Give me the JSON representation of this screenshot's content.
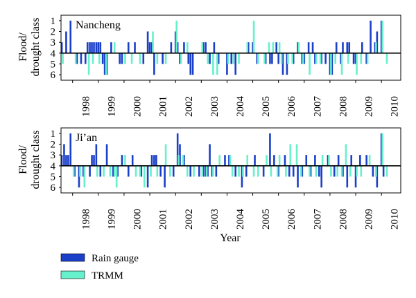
{
  "colors": {
    "rain_gauge": "#1a3fc9",
    "trmm": "#66f0cc",
    "axis": "#000000",
    "background": "#ffffff"
  },
  "chart_data": [
    {
      "type": "bar",
      "panel_label": "Nancheng",
      "ylabel_line1": "Flood/",
      "ylabel_line2": "drought class",
      "yticks": [
        "1",
        "2",
        "3",
        "4",
        "5",
        "6"
      ],
      "baseline": 4,
      "ylim": [
        0.5,
        6.5
      ],
      "xlim": [
        1997.55,
        2010.75
      ],
      "xticks": [
        "1998",
        "1999",
        "2000",
        "2001",
        "2002",
        "2003",
        "2004",
        "2005",
        "2006",
        "2007",
        "2008",
        "2009",
        "2010"
      ],
      "grid": false,
      "series": [
        {
          "name": "Rain gauge",
          "x": [
            1997.58,
            1997.75,
            1997.92,
            1998.17,
            1998.33,
            1998.5,
            1998.58,
            1998.67,
            1998.75,
            1998.83,
            1998.92,
            1999.0,
            1999.08,
            1999.17,
            1999.25,
            1999.33,
            1999.5,
            1999.83,
            1999.92,
            2000.17,
            2000.42,
            2000.75,
            2000.92,
            2001.0,
            2001.08,
            2001.17,
            2001.5,
            2001.83,
            2002.0,
            2002.08,
            2002.17,
            2002.33,
            2002.5,
            2002.58,
            2002.67,
            2003.08,
            2003.17,
            2003.33,
            2003.5,
            2003.67,
            2004.0,
            2004.17,
            2004.33,
            2004.83,
            2005.0,
            2005.17,
            2005.5,
            2005.67,
            2005.75,
            2005.92,
            2006.0,
            2006.17,
            2006.33,
            2006.58,
            2006.75,
            2006.92,
            2007.0,
            2007.17,
            2007.33,
            2007.42,
            2007.67,
            2007.83,
            2008.0,
            2008.08,
            2008.25,
            2008.42,
            2008.5,
            2008.67,
            2008.75,
            2008.92,
            2009.0,
            2009.25,
            2009.42,
            2009.58,
            2009.75,
            2009.83,
            2010.0
          ],
          "values": [
            3,
            2,
            1,
            5,
            5,
            5,
            3,
            3,
            3,
            3,
            3,
            3,
            3,
            5,
            6,
            6,
            3,
            5,
            5,
            3,
            3,
            5,
            2,
            3,
            3,
            6,
            5,
            3,
            2,
            3,
            5,
            3,
            5,
            6,
            6,
            3,
            3,
            5,
            3,
            5,
            6,
            5,
            6,
            3,
            3,
            5,
            5,
            5,
            5,
            3,
            5,
            6,
            6,
            5,
            3,
            5,
            5,
            3,
            3,
            5,
            5,
            5,
            6,
            6,
            3,
            5,
            3,
            3,
            3,
            5,
            5,
            3,
            5,
            1,
            3,
            2,
            1
          ]
        },
        {
          "name": "TRMM",
          "x": [
            1997.62,
            1998.12,
            1998.63,
            1998.79,
            1999.04,
            1999.3,
            1999.63,
            2000.04,
            2000.3,
            2000.62,
            2001.12,
            2001.29,
            2001.62,
            2002.04,
            2002.21,
            2002.46,
            2003.04,
            2003.25,
            2003.46,
            2003.62,
            2004.04,
            2004.25,
            2004.46,
            2004.79,
            2005.04,
            2005.21,
            2005.46,
            2005.63,
            2005.79,
            2006.04,
            2006.12,
            2006.37,
            2006.54,
            2006.79,
            2006.96,
            2007.21,
            2007.46,
            2007.63,
            2008.04,
            2008.21,
            2008.46,
            2008.71,
            2009.04,
            2009.21,
            2009.46,
            2009.79,
            2010.04,
            2010.21
          ],
          "values": [
            5,
            5,
            6,
            5,
            5,
            6,
            3,
            5,
            5,
            5,
            2,
            5,
            5,
            1,
            5,
            3,
            3,
            5,
            6,
            6,
            5,
            5,
            5,
            3,
            1,
            5,
            5,
            3,
            3,
            3,
            5,
            5,
            5,
            3,
            5,
            6,
            5,
            5,
            6,
            5,
            6,
            5,
            6,
            5,
            5,
            3,
            1,
            5
          ]
        }
      ]
    },
    {
      "type": "bar",
      "panel_label": "Ji’an",
      "ylabel_line1": "Flood/",
      "ylabel_line2": "drought class",
      "yticks": [
        "1",
        "2",
        "3",
        "4",
        "5",
        "6"
      ],
      "baseline": 4,
      "ylim": [
        0.5,
        6.5
      ],
      "xlim": [
        1997.55,
        2010.75
      ],
      "xticks": [
        "1998",
        "1999",
        "2000",
        "2001",
        "2002",
        "2003",
        "2004",
        "2005",
        "2006",
        "2007",
        "2008",
        "2009",
        "2010"
      ],
      "grid": false,
      "series": [
        {
          "name": "Rain gauge",
          "x": [
            1997.58,
            1997.67,
            1997.75,
            1997.83,
            1997.92,
            1998.08,
            1998.25,
            1998.42,
            1998.67,
            1998.75,
            1998.83,
            1998.92,
            1999.08,
            1999.33,
            1999.58,
            1999.75,
            1999.92,
            2000.17,
            2000.33,
            2000.67,
            2000.92,
            2001.08,
            2001.17,
            2001.25,
            2001.42,
            2001.58,
            2001.92,
            2002.08,
            2002.17,
            2002.33,
            2002.58,
            2002.92,
            2003.08,
            2003.17,
            2003.25,
            2003.33,
            2003.42,
            2003.58,
            2003.92,
            2004.08,
            2004.33,
            2004.58,
            2004.75,
            2005.08,
            2005.42,
            2005.67,
            2005.83,
            2006.0,
            2006.25,
            2006.42,
            2006.58,
            2006.75,
            2006.92,
            2007.08,
            2007.25,
            2007.42,
            2007.58,
            2007.67,
            2007.92,
            2008.17,
            2008.33,
            2008.5,
            2008.67,
            2008.83,
            2009.0,
            2009.17,
            2009.42,
            2009.67,
            2009.83,
            2010.0,
            2010.08
          ],
          "values": [
            3,
            2,
            3,
            3,
            1,
            5,
            6,
            5,
            5,
            3,
            3,
            2,
            5,
            2,
            5,
            5,
            3,
            5,
            3,
            5,
            6,
            3,
            3,
            3,
            5,
            6,
            5,
            1,
            2,
            3,
            5,
            5,
            5,
            5,
            5,
            2,
            5,
            5,
            3,
            3,
            5,
            6,
            5,
            3,
            5,
            1,
            3,
            5,
            3,
            5,
            5,
            6,
            5,
            3,
            5,
            3,
            5,
            6,
            3,
            5,
            3,
            5,
            6,
            3,
            6,
            3,
            3,
            5,
            6,
            1,
            5
          ]
        },
        {
          "name": "TRMM",
          "x": [
            1998.04,
            1998.29,
            1998.46,
            1998.96,
            1999.21,
            1999.46,
            1999.63,
            1999.71,
            2000.04,
            2000.46,
            2000.62,
            2000.79,
            2001.04,
            2001.29,
            2001.62,
            2001.79,
            2002.12,
            2002.29,
            2002.46,
            2002.71,
            2003.04,
            2003.21,
            2003.46,
            2003.71,
            2004.12,
            2004.21,
            2004.46,
            2004.62,
            2004.79,
            2005.04,
            2005.21,
            2005.54,
            2005.71,
            2005.96,
            2006.04,
            2006.29,
            2006.46,
            2006.71,
            2006.88,
            2007.21,
            2007.46,
            2007.71,
            2007.96,
            2008.04,
            2008.29,
            2008.46,
            2008.62,
            2008.79,
            2009.04,
            2009.21,
            2009.54,
            2009.79,
            2010.04,
            2010.21
          ],
          "values": [
            5,
            5,
            6,
            5,
            5,
            5,
            5,
            6,
            3,
            5,
            5,
            6,
            5,
            5,
            2,
            5,
            3,
            3,
            5,
            5,
            5,
            5,
            5,
            3,
            3,
            5,
            5,
            5,
            3,
            5,
            5,
            3,
            5,
            5,
            3,
            5,
            2,
            2,
            5,
            5,
            5,
            3,
            3,
            5,
            5,
            5,
            2,
            5,
            5,
            5,
            3,
            5,
            1,
            5
          ]
        }
      ]
    }
  ],
  "xlabel": "Year",
  "legend": {
    "position": "bottom-left",
    "items": [
      {
        "name": "Rain gauge",
        "color_key": "rain_gauge"
      },
      {
        "name": "TRMM",
        "color_key": "trmm"
      }
    ]
  }
}
